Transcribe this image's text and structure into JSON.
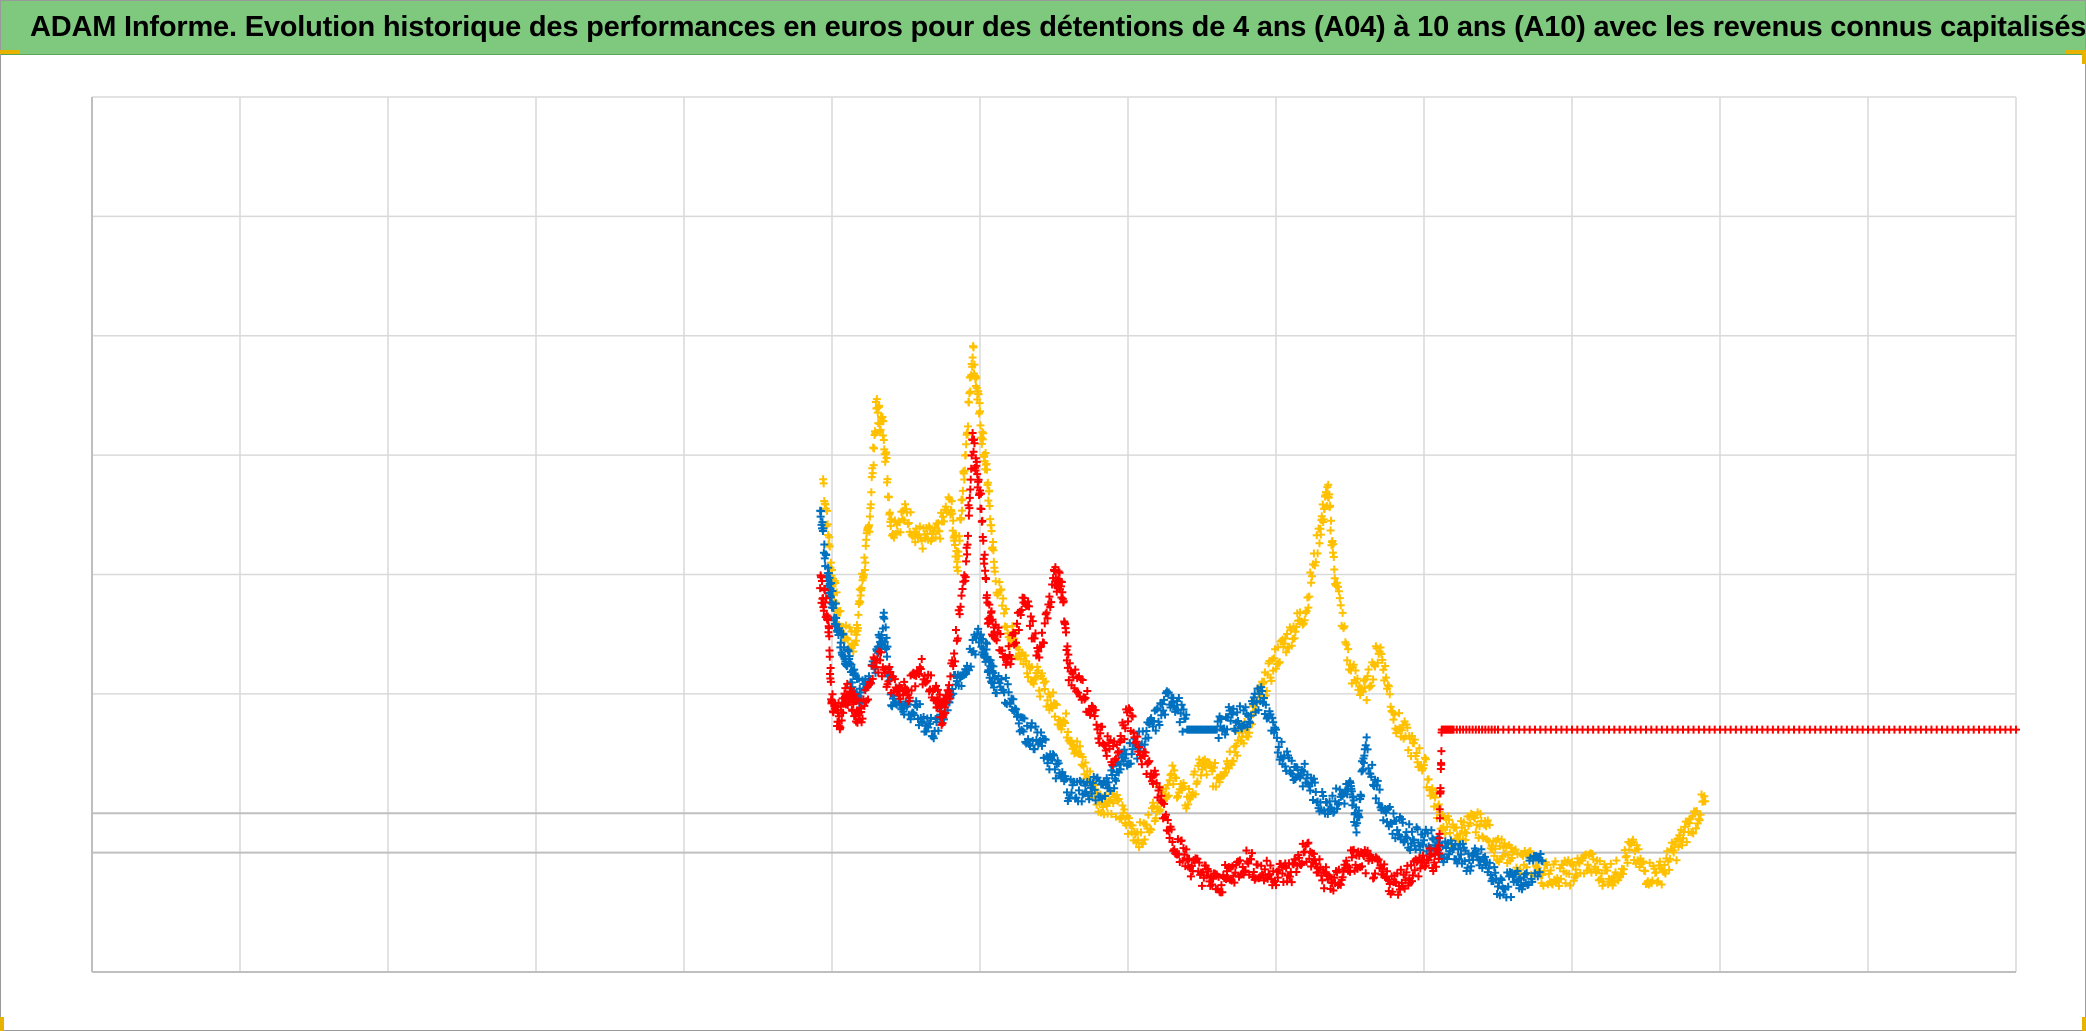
{
  "title": "ADAM Informe. Evolution historique des performances en euros pour des détentions de 4 ans (A04) à 10 ans (A10) avec les revenus connus capitalisés",
  "colors": {
    "title_bg": "#7ec97e",
    "grid": "#d9d9d9",
    "axis": "#bfbfbf",
    "handle": "#e8b200"
  },
  "chart_data": {
    "type": "scatter",
    "title": "ADAM Informe. Evolution historique des performances en euros pour des détentions de 4 ans (A04) à 10 ans (A10) avec les revenus connus capitalisés",
    "marker": "+",
    "grid": true,
    "legend": "none",
    "tick_labels_visible": false,
    "xlim": [
      0,
      13
    ],
    "ylim": [
      -1.33,
      6
    ],
    "reference_lines_y": [
      0,
      -0.33
    ],
    "series": [
      {
        "color": "#ffc000",
        "points": [
          [
            4.94,
            2.8
          ],
          [
            5.0,
            2.0
          ],
          [
            5.05,
            1.6
          ],
          [
            5.15,
            1.4
          ],
          [
            5.2,
            1.9
          ],
          [
            5.25,
            2.4
          ],
          [
            5.3,
            3.4
          ],
          [
            5.35,
            3.2
          ],
          [
            5.4,
            2.4
          ],
          [
            5.5,
            2.5
          ],
          [
            5.6,
            2.3
          ],
          [
            5.7,
            2.3
          ],
          [
            5.8,
            2.6
          ],
          [
            5.85,
            2.1
          ],
          [
            5.9,
            3.0
          ],
          [
            5.95,
            3.9
          ],
          [
            6.0,
            3.3
          ],
          [
            6.05,
            2.8
          ],
          [
            6.1,
            2.0
          ],
          [
            6.2,
            1.5
          ],
          [
            6.3,
            1.3
          ],
          [
            6.4,
            1.1
          ],
          [
            6.5,
            0.9
          ],
          [
            6.6,
            0.7
          ],
          [
            6.7,
            0.4
          ],
          [
            6.8,
            0.1
          ],
          [
            6.9,
            0.1
          ],
          [
            7.0,
            -0.1
          ],
          [
            7.1,
            -0.2
          ],
          [
            7.2,
            0.1
          ],
          [
            7.3,
            0.3
          ],
          [
            7.4,
            0.1
          ],
          [
            7.5,
            0.4
          ],
          [
            7.6,
            0.3
          ],
          [
            7.7,
            0.5
          ],
          [
            7.8,
            0.7
          ],
          [
            7.9,
            1.0
          ],
          [
            8.0,
            1.3
          ],
          [
            8.1,
            1.5
          ],
          [
            8.2,
            1.7
          ],
          [
            8.3,
            2.4
          ],
          [
            8.35,
            2.7
          ],
          [
            8.4,
            2.0
          ],
          [
            8.5,
            1.2
          ],
          [
            8.6,
            1.0
          ],
          [
            8.7,
            1.4
          ],
          [
            8.8,
            0.8
          ],
          [
            8.9,
            0.6
          ],
          [
            9.0,
            0.4
          ],
          [
            9.1,
            0.0
          ],
          [
            9.2,
            -0.2
          ],
          [
            9.3,
            -0.1
          ],
          [
            9.4,
            -0.1
          ],
          [
            9.5,
            -0.3
          ],
          [
            9.6,
            -0.4
          ],
          [
            9.7,
            -0.4
          ],
          [
            9.8,
            -0.5
          ],
          [
            9.9,
            -0.5
          ],
          [
            10.0,
            -0.5
          ],
          [
            10.1,
            -0.4
          ],
          [
            10.2,
            -0.5
          ],
          [
            10.3,
            -0.5
          ],
          [
            10.4,
            -0.3
          ],
          [
            10.5,
            -0.5
          ],
          [
            10.6,
            -0.5
          ],
          [
            10.7,
            -0.3
          ],
          [
            10.8,
            -0.1
          ],
          [
            10.9,
            0.1
          ]
        ]
      },
      {
        "color": "#0070c0",
        "points": [
          [
            4.92,
            2.5
          ],
          [
            4.97,
            2.0
          ],
          [
            5.0,
            1.8
          ],
          [
            5.05,
            1.5
          ],
          [
            5.1,
            1.3
          ],
          [
            5.15,
            1.1
          ],
          [
            5.2,
            1.0
          ],
          [
            5.3,
            1.3
          ],
          [
            5.35,
            1.6
          ],
          [
            5.4,
            1.0
          ],
          [
            5.5,
            0.9
          ],
          [
            5.6,
            0.8
          ],
          [
            5.7,
            0.7
          ],
          [
            5.8,
            1.0
          ],
          [
            5.9,
            1.2
          ],
          [
            6.0,
            1.5
          ],
          [
            6.05,
            1.3
          ],
          [
            6.1,
            1.1
          ],
          [
            6.2,
            1.0
          ],
          [
            6.3,
            0.7
          ],
          [
            6.4,
            0.6
          ],
          [
            6.5,
            0.4
          ],
          [
            6.6,
            0.2
          ],
          [
            6.7,
            0.2
          ],
          [
            6.8,
            0.2
          ],
          [
            6.9,
            0.3
          ],
          [
            7.0,
            0.5
          ],
          [
            7.1,
            0.6
          ],
          [
            7.2,
            0.8
          ],
          [
            7.3,
            1.0
          ],
          [
            7.4,
            0.7
          ],
          [
            7.5,
            0.7
          ],
          [
            7.6,
            0.7
          ],
          [
            7.7,
            0.8
          ],
          [
            7.8,
            0.8
          ],
          [
            7.9,
            1.0
          ],
          [
            8.0,
            0.6
          ],
          [
            8.1,
            0.4
          ],
          [
            8.2,
            0.3
          ],
          [
            8.3,
            0.1
          ],
          [
            8.4,
            0.1
          ],
          [
            8.5,
            0.2
          ],
          [
            8.55,
            -0.1
          ],
          [
            8.6,
            0.6
          ],
          [
            8.7,
            0.1
          ],
          [
            8.8,
            -0.1
          ],
          [
            8.9,
            -0.2
          ],
          [
            9.0,
            -0.2
          ],
          [
            9.1,
            -0.3
          ],
          [
            9.2,
            -0.3
          ],
          [
            9.3,
            -0.4
          ],
          [
            9.4,
            -0.4
          ],
          [
            9.5,
            -0.6
          ],
          [
            9.6,
            -0.6
          ],
          [
            9.7,
            -0.5
          ],
          [
            9.8,
            -0.4
          ]
        ]
      },
      {
        "color": "#ff0000",
        "points": [
          [
            4.92,
            1.9
          ],
          [
            4.97,
            1.7
          ],
          [
            5.0,
            0.9
          ],
          [
            5.05,
            0.8
          ],
          [
            5.1,
            1.0
          ],
          [
            5.15,
            0.9
          ],
          [
            5.2,
            0.8
          ],
          [
            5.3,
            1.3
          ],
          [
            5.4,
            1.1
          ],
          [
            5.5,
            1.0
          ],
          [
            5.6,
            1.2
          ],
          [
            5.7,
            1.0
          ],
          [
            5.75,
            0.8
          ],
          [
            5.8,
            1.1
          ],
          [
            5.9,
            2.0
          ],
          [
            5.95,
            3.1
          ],
          [
            6.0,
            2.7
          ],
          [
            6.05,
            1.7
          ],
          [
            6.1,
            1.5
          ],
          [
            6.2,
            1.3
          ],
          [
            6.3,
            1.8
          ],
          [
            6.4,
            1.3
          ],
          [
            6.5,
            2.0
          ],
          [
            6.55,
            1.9
          ],
          [
            6.6,
            1.2
          ],
          [
            6.7,
            1.0
          ],
          [
            6.8,
            0.7
          ],
          [
            6.9,
            0.5
          ],
          [
            7.0,
            0.8
          ],
          [
            7.1,
            0.5
          ],
          [
            7.2,
            0.2
          ],
          [
            7.3,
            -0.2
          ],
          [
            7.4,
            -0.4
          ],
          [
            7.5,
            -0.5
          ],
          [
            7.6,
            -0.6
          ],
          [
            7.7,
            -0.5
          ],
          [
            7.8,
            -0.4
          ],
          [
            7.9,
            -0.5
          ],
          [
            8.0,
            -0.5
          ],
          [
            8.1,
            -0.5
          ],
          [
            8.2,
            -0.3
          ],
          [
            8.3,
            -0.5
          ],
          [
            8.4,
            -0.6
          ],
          [
            8.5,
            -0.4
          ],
          [
            8.6,
            -0.4
          ],
          [
            8.7,
            -0.5
          ],
          [
            8.8,
            -0.6
          ],
          [
            8.9,
            -0.5
          ],
          [
            9.0,
            -0.4
          ],
          [
            9.1,
            -0.4
          ],
          [
            9.12,
            0.7
          ],
          [
            9.2,
            0.7
          ],
          [
            9.5,
            0.7
          ],
          [
            10.0,
            0.7
          ],
          [
            10.5,
            0.7
          ],
          [
            11.0,
            0.7
          ],
          [
            11.5,
            0.7
          ],
          [
            12.0,
            0.7
          ],
          [
            12.5,
            0.7
          ],
          [
            13.0,
            0.7
          ]
        ]
      }
    ]
  }
}
